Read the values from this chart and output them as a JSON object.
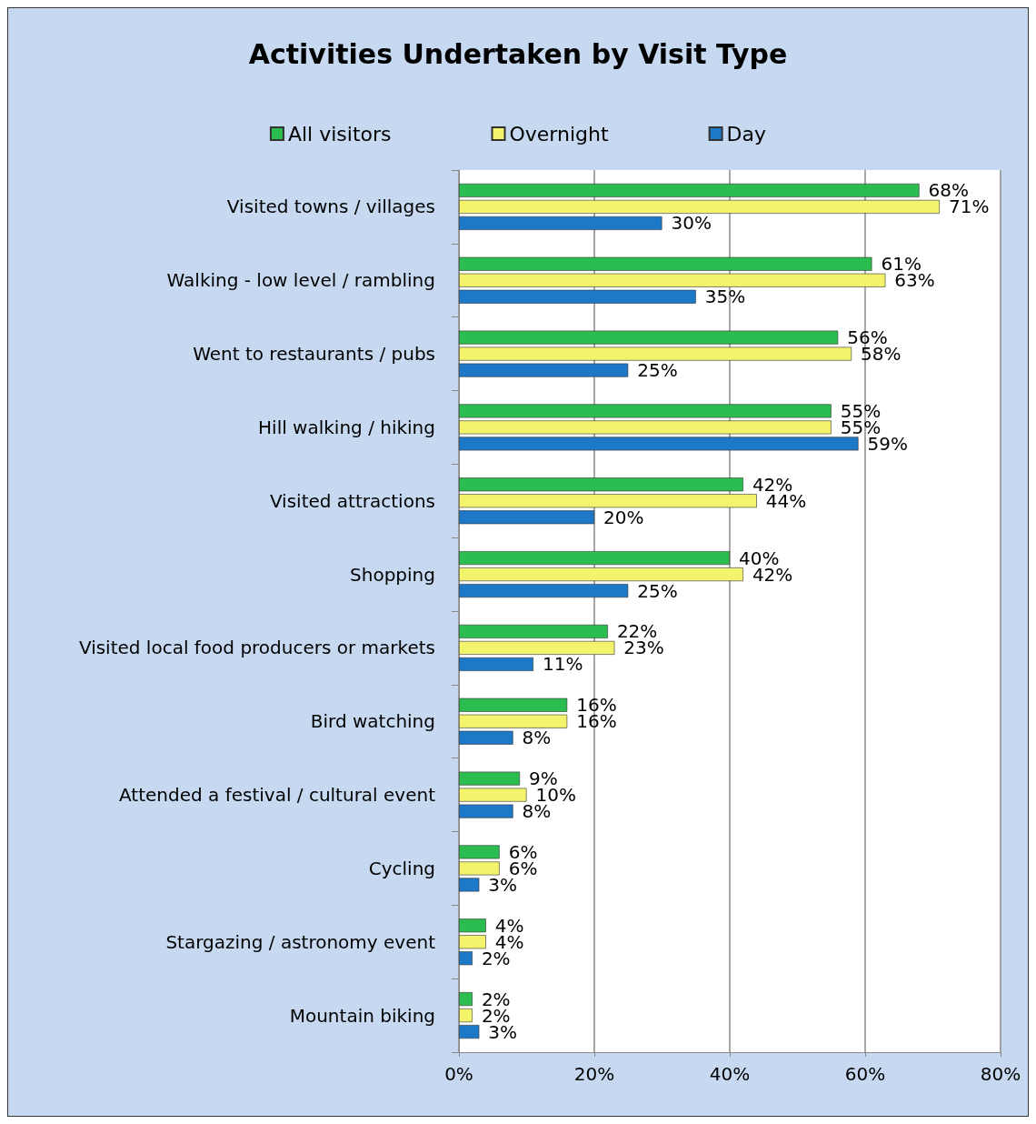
{
  "chart_data": {
    "type": "bar",
    "orientation": "horizontal",
    "title": "Activities Undertaken by Visit Type",
    "categories": [
      "Visited towns / villages",
      "Walking - low level / rambling",
      "Went to restaurants / pubs",
      "Hill walking / hiking",
      "Visited attractions",
      "Shopping",
      "Visited local food producers or markets",
      "Bird watching",
      "Attended a festival / cultural event",
      "Cycling",
      "Stargazing / astronomy event",
      "Mountain biking"
    ],
    "series": [
      {
        "name": "All visitors",
        "color": "#2bbd4f",
        "values": [
          68,
          61,
          56,
          55,
          42,
          40,
          22,
          16,
          9,
          6,
          4,
          2
        ],
        "value_labels": [
          "68%",
          "61%",
          "56%",
          "55%",
          "42%",
          "40%",
          "22%",
          "16%",
          "9%",
          "6%",
          "4%",
          "2%"
        ]
      },
      {
        "name": "Overnight",
        "color": "#f4f46c",
        "values": [
          71,
          63,
          58,
          55,
          44,
          42,
          23,
          16,
          10,
          6,
          4,
          2
        ],
        "value_labels": [
          "71%",
          "63%",
          "58%",
          "55%",
          "44%",
          "42%",
          "23%",
          "16%",
          "10%",
          "6%",
          "4%",
          "2%"
        ]
      },
      {
        "name": "Day",
        "color": "#1e78c8",
        "values": [
          30,
          35,
          25,
          59,
          20,
          25,
          11,
          8,
          8,
          3,
          2,
          3
        ],
        "value_labels": [
          "30%",
          "35%",
          "25%",
          "59%",
          "20%",
          "25%",
          "11%",
          "8%",
          "8%",
          "3%",
          "2%",
          "3%"
        ]
      }
    ],
    "xlim": [
      0,
      80
    ],
    "xticks": [
      {
        "value": 0,
        "label": "0%"
      },
      {
        "value": 20,
        "label": "20%"
      },
      {
        "value": 40,
        "label": "40%"
      },
      {
        "value": 60,
        "label": "60%"
      },
      {
        "value": 80,
        "label": "80%"
      }
    ],
    "grid": "x",
    "legend": "top"
  }
}
